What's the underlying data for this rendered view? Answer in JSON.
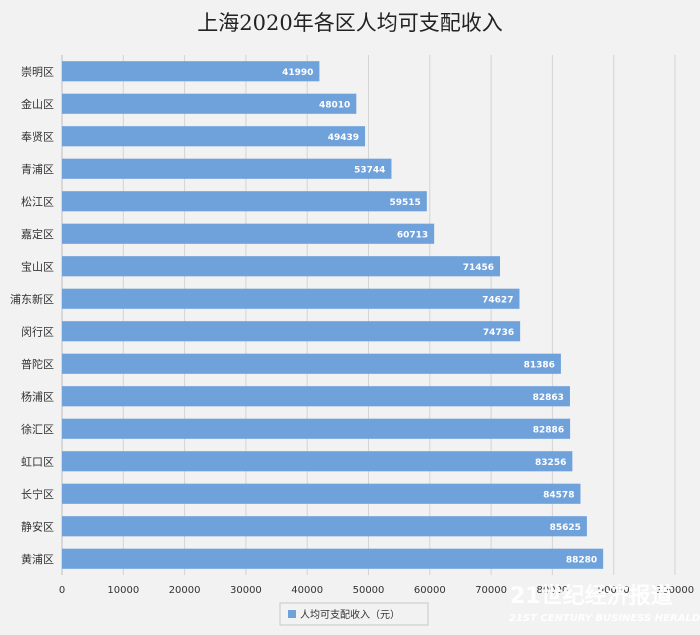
{
  "chart_data": {
    "type": "bar",
    "orientation": "horizontal",
    "title": "上海2020年各区人均可支配收入",
    "categories": [
      "崇明区",
      "金山区",
      "奉贤区",
      "青浦区",
      "松江区",
      "嘉定区",
      "宝山区",
      "浦东新区",
      "闵行区",
      "普陀区",
      "杨浦区",
      "徐汇区",
      "虹口区",
      "长宁区",
      "静安区",
      "黄浦区"
    ],
    "series": [
      {
        "name": "人均可支配收入（元）",
        "values": [
          41990,
          48010,
          49439,
          53744,
          59515,
          60713,
          71456,
          74627,
          74736,
          81386,
          82863,
          82886,
          83256,
          84578,
          85625,
          88280
        ]
      }
    ],
    "xlim": [
      0,
      100000
    ],
    "x_ticks": [
      "0",
      "10000",
      "20000",
      "30000",
      "40000",
      "50000",
      "60000",
      "70000",
      "80000",
      "90000",
      "100000"
    ],
    "grid": "vertical",
    "legend": "bottom",
    "bar_color": "#6fa1db",
    "value_label_color": "#ffffff"
  },
  "watermark": {
    "main": "21世纪经济报道",
    "sub": "21ST CENTURY BUSINESS HERALD"
  }
}
